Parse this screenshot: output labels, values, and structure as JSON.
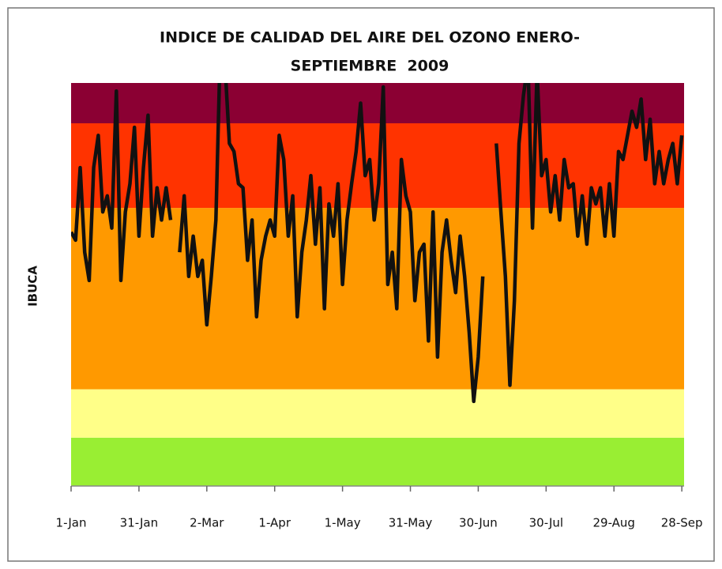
{
  "chart_data": {
    "type": "line",
    "title": [
      "INDICE DE CALIDAD DEL AIRE DEL OZONO ENERO-",
      "SEPTIEMBRE  2009"
    ],
    "y_label": "IBUCA",
    "xlim": [
      0,
      271
    ],
    "ylim": [
      0,
      100
    ],
    "xticks": [
      {
        "value": 0,
        "label": "1-Jan"
      },
      {
        "value": 30,
        "label": "31-Jan"
      },
      {
        "value": 60,
        "label": "2-Mar"
      },
      {
        "value": 90,
        "label": "1-Apr"
      },
      {
        "value": 120,
        "label": "1-May"
      },
      {
        "value": 150,
        "label": "31-May"
      },
      {
        "value": 180,
        "label": "30-Jun"
      },
      {
        "value": 210,
        "label": "30-Jul"
      },
      {
        "value": 240,
        "label": "29-Aug"
      },
      {
        "value": 270,
        "label": "28-Sep"
      }
    ],
    "bands": [
      {
        "from": 0,
        "to": 12,
        "color": "#99ee33"
      },
      {
        "from": 12,
        "to": 24,
        "color": "#ffff88"
      },
      {
        "from": 24,
        "to": 69,
        "color": "#ff9900"
      },
      {
        "from": 69,
        "to": 90,
        "color": "#ff3300"
      },
      {
        "from": 90,
        "to": 100,
        "color": "#8b0033"
      }
    ],
    "series": [
      {
        "name": "IBUCA",
        "color": "#111111",
        "x": [
          0,
          2,
          4,
          6,
          8,
          10,
          12,
          14,
          16,
          18,
          20,
          22,
          24,
          26,
          28,
          30,
          32,
          34,
          36,
          38,
          40,
          42,
          44,
          46,
          48,
          50,
          52,
          54,
          56,
          58,
          60,
          62,
          64,
          66,
          68,
          70,
          72,
          74,
          76,
          78,
          80,
          82,
          84,
          86,
          88,
          90,
          92,
          94,
          96,
          98,
          100,
          102,
          104,
          106,
          108,
          110,
          112,
          114,
          116,
          118,
          120,
          122,
          124,
          126,
          128,
          130,
          132,
          134,
          136,
          138,
          140,
          142,
          144,
          146,
          148,
          150,
          152,
          154,
          156,
          158,
          160,
          162,
          164,
          166,
          168,
          170,
          172,
          174,
          176,
          178,
          180,
          182,
          184,
          186,
          188,
          190,
          192,
          194,
          196,
          198,
          200,
          202,
          204,
          206,
          208,
          210,
          212,
          214,
          216,
          218,
          220,
          222,
          224,
          226,
          228,
          230,
          232,
          234,
          236,
          238,
          240,
          242,
          244,
          246,
          248,
          250,
          252,
          254,
          256,
          258,
          260,
          262,
          264,
          266,
          268,
          270
        ],
        "values": [
          63,
          61,
          79,
          58,
          51,
          79,
          87,
          68,
          72,
          64,
          98,
          51,
          68,
          75,
          89,
          62,
          79,
          92,
          62,
          74,
          66,
          74,
          66,
          null,
          58,
          72,
          52,
          62,
          52,
          56,
          40,
          52,
          66,
          110,
          105,
          85,
          83,
          75,
          74,
          56,
          66,
          42,
          56,
          62,
          66,
          62,
          87,
          81,
          62,
          72,
          42,
          58,
          66,
          77,
          60,
          74,
          44,
          70,
          62,
          75,
          50,
          66,
          75,
          83,
          95,
          77,
          81,
          66,
          75,
          99,
          50,
          58,
          44,
          81,
          72,
          68,
          46,
          58,
          60,
          36,
          68,
          32,
          58,
          66,
          56,
          48,
          62,
          52,
          38,
          21,
          32,
          52,
          null,
          null,
          85,
          68,
          52,
          25,
          46,
          85,
          97,
          105,
          64,
          103,
          77,
          81,
          68,
          77,
          66,
          81,
          74,
          75,
          62,
          72,
          60,
          74,
          70,
          74,
          62,
          75,
          62,
          83,
          81,
          87,
          93,
          89,
          96,
          81,
          91,
          75,
          83,
          75,
          81,
          85,
          75,
          87
        ]
      }
    ]
  }
}
